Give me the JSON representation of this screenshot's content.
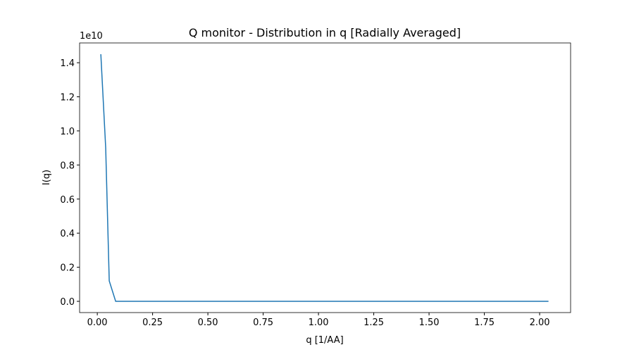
{
  "chart_data": {
    "type": "line",
    "title": "Q monitor - Distribution in q [Radially Averaged]",
    "x_label": "q [1/AA]",
    "y_label": "I(q)",
    "y_offset_label": "1e10",
    "x": [
      0.016,
      0.038,
      0.054,
      0.083,
      0.5,
      1.0,
      1.5,
      2.04
    ],
    "series": [
      {
        "name": "I(q)",
        "color": "#1f77b4",
        "values": [
          1.45,
          0.9,
          0.12,
          0.0,
          0.0,
          0.0,
          0.0,
          0.0
        ]
      }
    ],
    "xlim": [
      -0.08,
      2.14
    ],
    "ylim": [
      -0.066,
      1.516
    ],
    "xticks": [
      {
        "value": 0,
        "label": "0.00"
      },
      {
        "value": 0.25,
        "label": "0.25"
      },
      {
        "value": 0.5,
        "label": "0.50"
      },
      {
        "value": 0.75,
        "label": "0.75"
      },
      {
        "value": 1,
        "label": "1.00"
      },
      {
        "value": 1.25,
        "label": "1.25"
      },
      {
        "value": 1.5,
        "label": "1.50"
      },
      {
        "value": 1.75,
        "label": "1.75"
      },
      {
        "value": 2,
        "label": "2.00"
      }
    ],
    "yticks": [
      {
        "value": 0,
        "label": "0.0"
      },
      0.2,
      0.4,
      0.6,
      0.8,
      {
        "value": 1,
        "label": "1.0"
      },
      1.2,
      1.4
    ]
  }
}
